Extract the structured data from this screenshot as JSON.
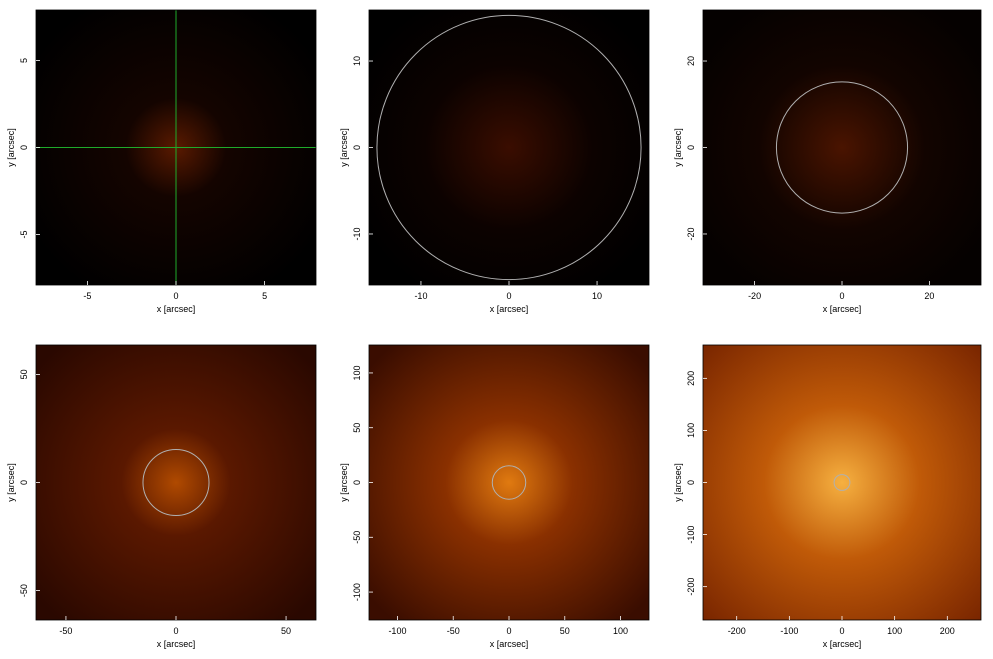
{
  "chart_data": [
    {
      "type": "image",
      "xlabel": "x [arcsec]",
      "ylabel": "y [arcsec]",
      "xlim": [
        -7.9,
        7.9
      ],
      "ylim": [
        -7.9,
        7.9
      ],
      "xticks": [
        -5,
        0,
        5
      ],
      "yticks": [
        -5,
        0,
        5
      ],
      "crosshair": {
        "x": 0,
        "y": 0,
        "color": "#1faa2a"
      }
    },
    {
      "type": "image",
      "xlabel": "x [arcsec]",
      "ylabel": "y [arcsec]",
      "xlim": [
        -15.9,
        15.9
      ],
      "ylim": [
        -15.9,
        15.9
      ],
      "xticks": [
        -10,
        0,
        10
      ],
      "yticks": [
        -10,
        0,
        10
      ],
      "circle": {
        "cx": 0,
        "cy": 0,
        "r": 15,
        "color": "#b0b0b0"
      }
    },
    {
      "type": "image",
      "xlabel": "x [arcsec]",
      "ylabel": "y [arcsec]",
      "xlim": [
        -31.8,
        31.8
      ],
      "ylim": [
        -31.8,
        31.8
      ],
      "xticks": [
        -20,
        0,
        20
      ],
      "yticks": [
        -20,
        0,
        20
      ],
      "circle": {
        "cx": 0,
        "cy": 0,
        "r": 15,
        "color": "#b0b0b0"
      }
    },
    {
      "type": "image",
      "xlabel": "x [arcsec]",
      "ylabel": "y [arcsec]",
      "xlim": [
        -63.6,
        63.6
      ],
      "ylim": [
        -63.6,
        63.6
      ],
      "xticks": [
        -50,
        0,
        50
      ],
      "yticks": [
        -50,
        0,
        50
      ],
      "circle": {
        "cx": 0,
        "cy": 0,
        "r": 15,
        "color": "#b0b0b0"
      }
    },
    {
      "type": "image",
      "xlabel": "x [arcsec]",
      "ylabel": "y [arcsec]",
      "xlim": [
        -125.5,
        125.5
      ],
      "ylim": [
        -125.5,
        125.5
      ],
      "xticks": [
        -100,
        -50,
        0,
        50,
        100
      ],
      "yticks": [
        -100,
        -50,
        0,
        50,
        100
      ],
      "circle": {
        "cx": 0,
        "cy": 0,
        "r": 15,
        "color": "#b0b0b0"
      }
    },
    {
      "type": "image",
      "xlabel": "x [arcsec]",
      "ylabel": "y [arcsec]",
      "xlim": [
        -264,
        264
      ],
      "ylim": [
        -264,
        264
      ],
      "xticks": [
        -200,
        -100,
        0,
        100,
        200
      ],
      "yticks": [
        -200,
        -100,
        0,
        100,
        200
      ],
      "circle": {
        "cx": 0,
        "cy": 0,
        "r": 15,
        "color": "#b0b0b0"
      }
    }
  ]
}
